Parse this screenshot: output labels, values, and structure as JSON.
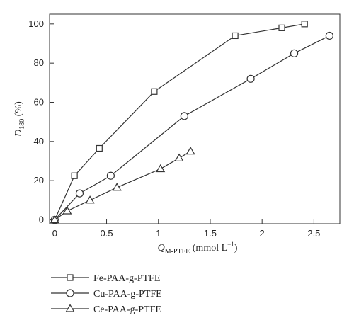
{
  "chart_data": {
    "type": "line",
    "title": "",
    "xlabel": {
      "symbol": "Q",
      "subscript": "M-PTFE",
      "unit": " (mmol L",
      "unit_sup": "−1",
      "unit_end": ")"
    },
    "ylabel": {
      "symbol": "D",
      "subscript": "180",
      "unit": " (%)"
    },
    "xlim": [
      -0.05,
      2.75
    ],
    "ylim": [
      -2,
      105
    ],
    "xticks": [
      0,
      0.5,
      1,
      1.5,
      2,
      2.5
    ],
    "xtick_labels": [
      "0",
      "0.5",
      "1",
      "1.5",
      "2",
      "2.5"
    ],
    "yticks": [
      0,
      20,
      40,
      60,
      80,
      100
    ],
    "ytick_labels": [
      "0",
      "20",
      "40",
      "60",
      "80",
      "100"
    ],
    "grid": false,
    "legend_position": "bottom-left, below plot",
    "series": [
      {
        "name": "Fe-PAA-g-PTFE",
        "marker": "square",
        "x": [
          0,
          0.19,
          0.43,
          0.96,
          1.74,
          2.19,
          2.41
        ],
        "y": [
          0,
          22.5,
          36.5,
          65.5,
          94,
          98,
          100
        ]
      },
      {
        "name": "Cu-PAA-g-PTFE",
        "marker": "circle",
        "x": [
          0,
          0.24,
          0.54,
          1.25,
          1.89,
          2.31,
          2.65
        ],
        "y": [
          0,
          13.5,
          22.5,
          53,
          72,
          85,
          94
        ]
      },
      {
        "name": "Ce-PAA-g-PTFE",
        "marker": "triangle",
        "x": [
          0,
          0.12,
          0.34,
          0.6,
          1.02,
          1.2,
          1.31
        ],
        "y": [
          0,
          4.5,
          10,
          16.5,
          26,
          31.5,
          35
        ]
      }
    ]
  }
}
